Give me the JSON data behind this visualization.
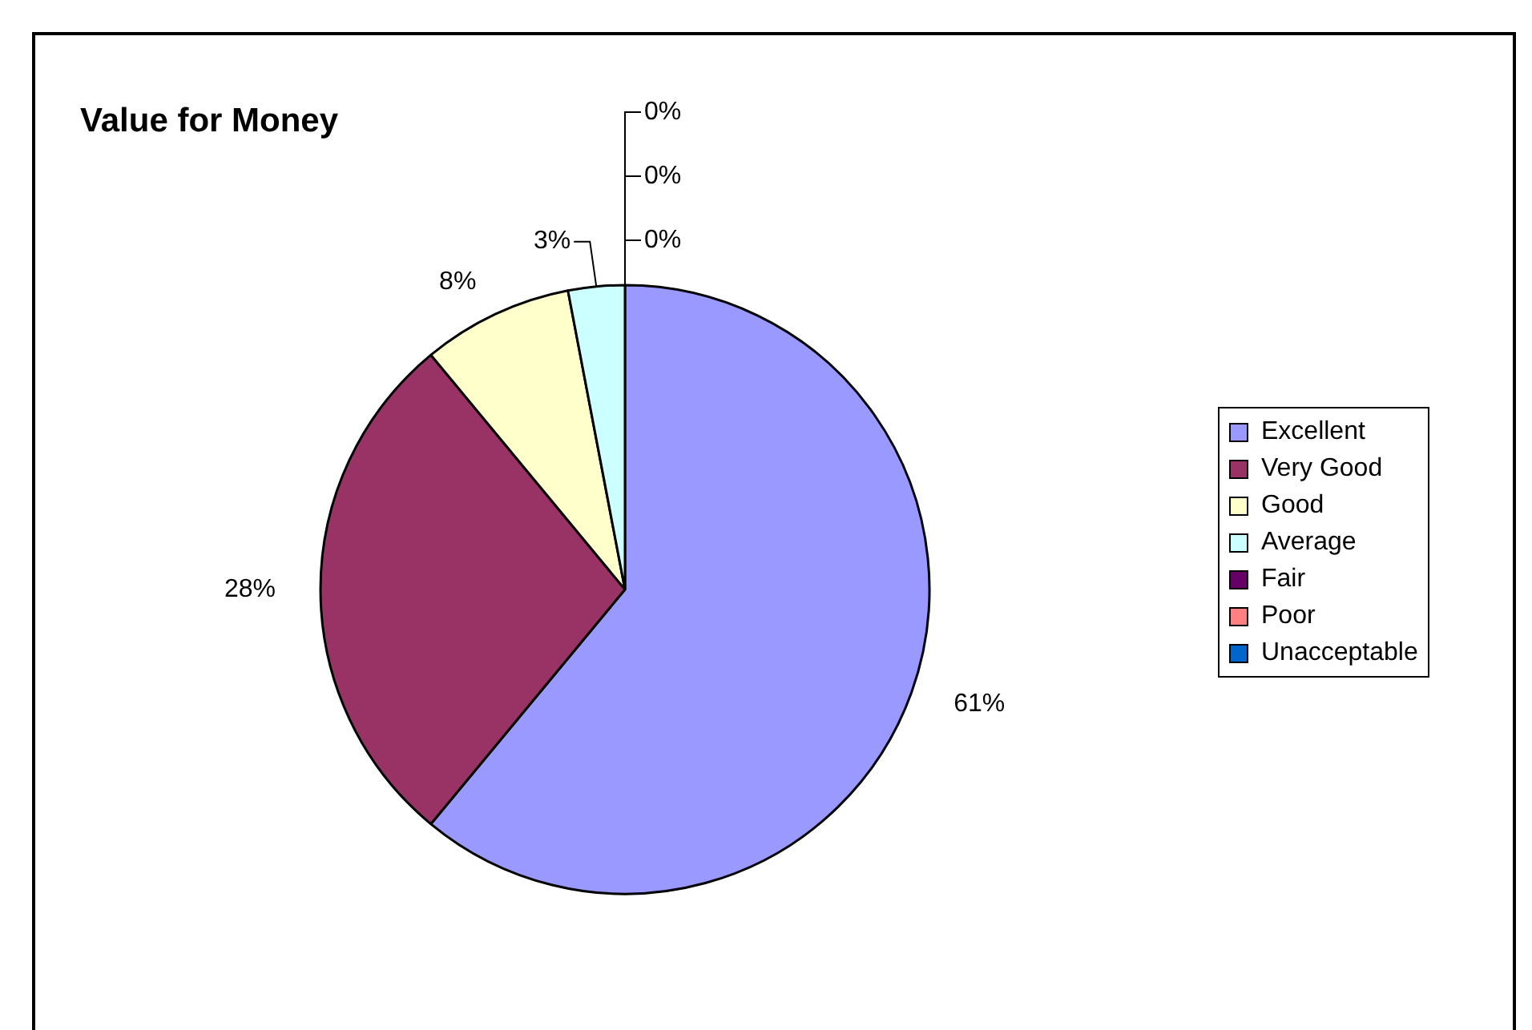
{
  "chart_data": {
    "type": "pie",
    "title": "Value for Money",
    "categories": [
      "Excellent",
      "Very Good",
      "Good",
      "Average",
      "Fair",
      "Poor",
      "Unacceptable"
    ],
    "values": [
      61,
      28,
      8,
      3,
      0,
      0,
      0
    ],
    "colors": [
      "#9999ff",
      "#993366",
      "#ffffcc",
      "#ccffff",
      "#660066",
      "#ff8080",
      "#0066cc"
    ],
    "value_labels": [
      "61%",
      "28%",
      "8%",
      "3%",
      "0%",
      "0%",
      "0%"
    ],
    "legend": "right"
  }
}
